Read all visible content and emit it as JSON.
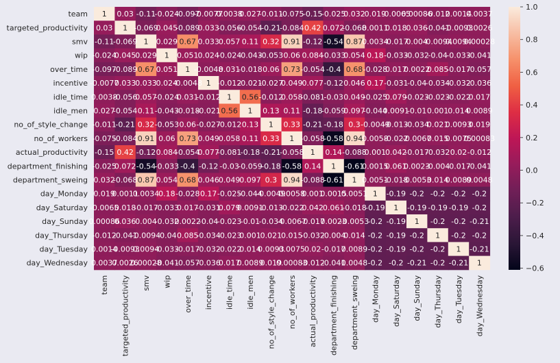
{
  "chart_data": {
    "type": "heatmap",
    "title": "",
    "xlabel": "",
    "ylabel": "",
    "labels": [
      "team",
      "targeted_productivity",
      "smv",
      "wip",
      "over_time",
      "incentive",
      "idle_time",
      "idle_men",
      "no_of_style_change",
      "no_of_workers",
      "actual_productivity",
      "department_finishing",
      "department_sweing",
      "day_Monday",
      "day_Saturday",
      "day_Sunday",
      "day_Thursday",
      "day_Tuesday",
      "day_Wednesday"
    ],
    "annotations": [
      [
        "1",
        "0.03",
        "-0.11",
        "-0.024",
        "-0.097",
        "-0.0077",
        "0.0038",
        "0.027",
        "-0.011",
        "-0.075",
        "-0.15",
        "-0.025",
        "0.032",
        "0.019",
        "-0.0065",
        "0.00086",
        "-0.012",
        "0.0014",
        "0.0037"
      ],
      [
        "0.03",
        "1",
        "-0.069",
        "0.045",
        "-0.089",
        "0.033",
        "-0.056",
        "-0.054",
        "-0.21",
        "-0.084",
        "0.42",
        "0.072",
        "-0.068",
        "0.0011",
        "0.018",
        "0.036",
        "-0.041",
        "-0.0093",
        "0.0026"
      ],
      [
        "-0.11",
        "-0.069",
        "1",
        "0.029",
        "0.67",
        "0.033",
        "0.057",
        "0.11",
        "0.32",
        "0.91",
        "-0.12",
        "-0.54",
        "0.87",
        "0.0034",
        "-0.017",
        "0.004",
        "-0.0094",
        "0.0094",
        "0.00028"
      ],
      [
        "-0.024",
        "0.045",
        "0.029",
        "1",
        "0.051",
        "0.024",
        "-0.024",
        "-0.043",
        "-0.053",
        "0.06",
        "0.084",
        "-0.033",
        "0.054",
        "0.18",
        "-0.033",
        "-0.032",
        "-0.04",
        "-0.033",
        "-0.041"
      ],
      [
        "-0.097",
        "-0.089",
        "0.67",
        "0.051",
        "1",
        "-0.0048",
        "0.031",
        "-0.018",
        "0.06",
        "0.73",
        "-0.054",
        "-0.4",
        "0.68",
        "-0.028",
        "0.017",
        "0.0022",
        "0.085",
        "-0.017",
        "-0.057"
      ],
      [
        "-0.0077",
        "0.033",
        "0.033",
        "0.024",
        "-0.0048",
        "1",
        "-0.012",
        "-0.021",
        "-0.027",
        "0.049",
        "0.077",
        "-0.12",
        "0.046",
        "0.17",
        "-0.031",
        "-0.04",
        "-0.034",
        "-0.032",
        "-0.036"
      ],
      [
        "0.0038",
        "-0.056",
        "0.057",
        "-0.024",
        "0.031",
        "-0.012",
        "1",
        "0.56",
        "-0.012",
        "0.058",
        "-0.081",
        "-0.03",
        "0.049",
        "-0.025",
        "0.079",
        "-0.023",
        "-0.023",
        "-0.022",
        "0.017"
      ],
      [
        "0.027",
        "-0.054",
        "0.11",
        "-0.043",
        "-0.018",
        "-0.021",
        "0.56",
        "1",
        "0.13",
        "0.11",
        "-0.18",
        "-0.059",
        "0.097",
        "-0.044",
        "0.0091",
        "-0.01",
        "0.001",
        "0.014",
        "0.0089"
      ],
      [
        "-0.011",
        "-0.21",
        "0.32",
        "-0.053",
        "0.06",
        "-0.027",
        "-0.012",
        "0.13",
        "1",
        "0.33",
        "-0.21",
        "-0.18",
        "0.3",
        "-0.0049",
        "-0.013",
        "-0.034",
        "0.021",
        "0.0093",
        "0.019"
      ],
      [
        "-0.075",
        "-0.084",
        "0.91",
        "0.06",
        "0.73",
        "0.049",
        "0.058",
        "0.11",
        "0.33",
        "1",
        "-0.058",
        "-0.58",
        "0.94",
        "0.0058",
        "-0.022",
        "-0.0067",
        "0.015",
        "0.0075",
        "0.00083"
      ],
      [
        "-0.15",
        "0.42",
        "-0.12",
        "0.084",
        "-0.054",
        "0.077",
        "-0.081",
        "-0.18",
        "-0.21",
        "-0.058",
        "1",
        "0.14",
        "-0.088",
        "0.001",
        "0.042",
        "-0.017",
        "-0.032",
        "0.02",
        "-0.012"
      ],
      [
        "-0.025",
        "0.072",
        "-0.54",
        "-0.033",
        "-0.4",
        "-0.12",
        "-0.03",
        "-0.059",
        "-0.18",
        "-0.58",
        "0.14",
        "1",
        "-0.61",
        "0.0015",
        "0.061",
        "0.0023",
        "-0.004",
        "-0.017",
        "-0.041"
      ],
      [
        "0.032",
        "-0.068",
        "0.87",
        "0.054",
        "0.68",
        "0.046",
        "0.049",
        "0.097",
        "0.3",
        "0.94",
        "-0.088",
        "-0.61",
        "1",
        "0.0051",
        "-0.018",
        "-0.0053",
        "0.014",
        "0.0089",
        "0.0048"
      ],
      [
        "0.019",
        "0.0011",
        "0.0034",
        "0.18",
        "-0.028",
        "0.17",
        "-0.025",
        "-0.044",
        "-0.0049",
        "0.0058",
        "0.001",
        "0.0015",
        "0.0051",
        "1",
        "-0.19",
        "-0.2",
        "-0.2",
        "-0.2",
        "-0.2"
      ],
      [
        "-0.0065",
        "0.018",
        "-0.017",
        "-0.033",
        "0.017",
        "-0.031",
        "0.079",
        "0.0091",
        "-0.013",
        "-0.022",
        "0.042",
        "0.061",
        "-0.018",
        "-0.19",
        "1",
        "-0.19",
        "-0.19",
        "-0.19",
        "-0.2"
      ],
      [
        "0.00086",
        "0.036",
        "0.004",
        "-0.032",
        "0.0022",
        "-0.04",
        "-0.023",
        "-0.01",
        "-0.034",
        "-0.0067",
        "-0.017",
        "0.0023",
        "-0.0053",
        "-0.2",
        "-0.19",
        "1",
        "-0.2",
        "-0.2",
        "-0.21"
      ],
      [
        "-0.012",
        "-0.041",
        "-0.0094",
        "-0.04",
        "0.085",
        "-0.034",
        "-0.023",
        "0.001",
        "0.021",
        "0.015",
        "-0.032",
        "-0.004",
        "0.014",
        "-0.2",
        "-0.19",
        "-0.2",
        "1",
        "-0.2",
        "-0.2"
      ],
      [
        "0.0014",
        "-0.0093",
        "0.0094",
        "-0.033",
        "-0.017",
        "-0.032",
        "-0.022",
        "0.014",
        "0.0093",
        "0.0075",
        "0.02",
        "-0.017",
        "0.0089",
        "-0.2",
        "-0.19",
        "-0.2",
        "-0.2",
        "1",
        "-0.21"
      ],
      [
        "0.0037",
        "0.0026",
        "0.00028",
        "-0.041",
        "-0.057",
        "-0.036",
        "0.017",
        "0.0089",
        "0.019",
        "0.00083",
        "-0.012",
        "-0.041",
        "0.0048",
        "-0.2",
        "-0.2",
        "-0.21",
        "-0.2",
        "-0.21",
        "1"
      ]
    ],
    "colorbar": {
      "range": [
        -0.61,
        1.0
      ],
      "ticks": [
        "1.0",
        "0.8",
        "0.6",
        "0.4",
        "0.2",
        "0.0",
        "−0.2",
        "−0.4",
        "−0.6"
      ],
      "tick_values": [
        1.0,
        0.8,
        0.6,
        0.4,
        0.2,
        0.0,
        -0.2,
        -0.4,
        -0.6
      ],
      "colormap": "rocket",
      "colormap_stops": [
        "#03051a",
        "#2a1636",
        "#4c1d4b",
        "#701f57",
        "#961c5b",
        "#be1656",
        "#de2e44",
        "#f06043",
        "#f6916b",
        "#f7bea4",
        "#faebdd"
      ]
    },
    "grid": false,
    "legend": "colorbar-right",
    "colors": {
      "background": "#eaeaf2",
      "text": "#262626"
    }
  }
}
